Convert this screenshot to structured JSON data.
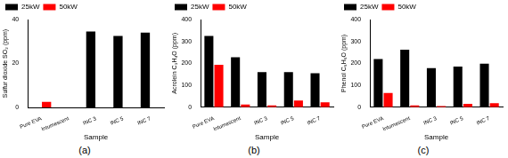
{
  "chart_data": [
    {
      "type": "bar",
      "caption": "(a)",
      "x_label": "Sample",
      "y_label": "Sulfur dioxide SO₂ (ppm)",
      "categories": [
        "Pure EVA",
        "Intumescent",
        "INC 3",
        "INC 5",
        "INC 7"
      ],
      "series": [
        {
          "name": "25kW",
          "color": "#000000",
          "values": [
            0,
            0,
            34.5,
            32.5,
            34
          ]
        },
        {
          "name": "50kW",
          "color": "#ff0000",
          "values": [
            2.5,
            0,
            0,
            0,
            0
          ]
        }
      ],
      "ylim": [
        0,
        40
      ],
      "yticks": [
        0,
        20,
        40
      ],
      "grid": false,
      "legend": "top"
    },
    {
      "type": "bar",
      "caption": "(b)",
      "x_label": "Sample",
      "y_label": "Acrolein C₃H₄O (ppm)",
      "categories": [
        "Pure EVA",
        "Intumescent",
        "INC 3",
        "INC 5",
        "INC 7"
      ],
      "series": [
        {
          "name": "25kW",
          "color": "#000000",
          "values": [
            325,
            228,
            160,
            160,
            155
          ]
        },
        {
          "name": "50kW",
          "color": "#ff0000",
          "values": [
            193,
            12,
            8,
            30,
            22
          ]
        }
      ],
      "ylim": [
        0,
        400
      ],
      "yticks": [
        0,
        100,
        200,
        300,
        400
      ],
      "grid": false,
      "legend": "top"
    },
    {
      "type": "bar",
      "caption": "(c)",
      "x_label": "Sample",
      "y_label": "Phenol C₆H₆O (ppm)",
      "categories": [
        "Pure EVA",
        "Intumescent",
        "INC 3",
        "INC 5",
        "INC 7"
      ],
      "series": [
        {
          "name": "25kW",
          "color": "#000000",
          "values": [
            220,
            262,
            178,
            185,
            198
          ]
        },
        {
          "name": "50kW",
          "color": "#ff0000",
          "values": [
            65,
            8,
            5,
            15,
            18
          ]
        }
      ],
      "ylim": [
        0,
        400
      ],
      "yticks": [
        0,
        100,
        200,
        300,
        400
      ],
      "grid": false,
      "legend": "top"
    }
  ]
}
